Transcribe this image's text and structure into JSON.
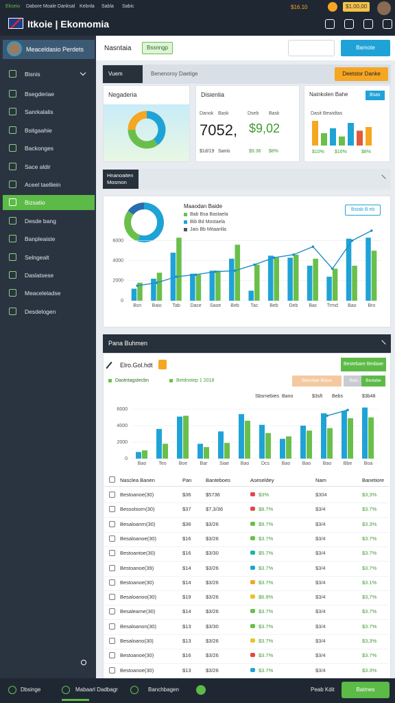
{
  "topbar": {
    "title": "Itkoie | Ekomomia",
    "links": [
      "Ekseio",
      "Dabore Moale Danksal",
      "Kebnla",
      "Sabla",
      "Sabic"
    ],
    "price": "$16.10",
    "balance": "$1.00,00"
  },
  "sidebar": {
    "user": "Meaceldasio Perdets",
    "menu": [
      "Bisnis",
      "Bsegderiae",
      "Sanrkalalis",
      "Bsitgaahie",
      "Backonges",
      "Sace aldir",
      "Aceel taelliein",
      "Bizsatio",
      "Desde bang",
      "Banpleaiste",
      "Selngealt",
      "Daslatsese",
      "Meaceleladse",
      "Desdelogen"
    ],
    "active": 7
  },
  "header": {
    "title": "Nasntaia",
    "tag": "Bssnngp",
    "button": "Bamote"
  },
  "panel1": {
    "tab": "Vuem",
    "subtitle": "Benenoroy Daetige",
    "button": "Deetstor Danke"
  },
  "cards": {
    "donut_card": {
      "title": "Negaderia",
      "donut": [
        40,
        35,
        25
      ],
      "colors": [
        "#1fa3d6",
        "#6abf4b",
        "#f5a623"
      ]
    },
    "stat_card": {
      "title": "Disienlia",
      "labels": [
        "Danok",
        "Bask",
        "Dseb",
        "Bask"
      ],
      "big": [
        "7052,",
        "$9,02"
      ],
      "foot": [
        "$1d/19",
        "Sanis",
        "$9.36",
        "$8%"
      ]
    },
    "mini_card": {
      "title": "Nainkolen Bahe",
      "button": "Bsas",
      "sub": "Dasit Bewidtas",
      "bars": [
        60,
        30,
        42,
        22,
        55,
        36,
        45
      ],
      "colors": [
        "#f5a623",
        "#6abf4b",
        "#1fa3d6",
        "#6abf4b",
        "#1fa3d6",
        "#e05a3a",
        "#f5a623"
      ],
      "foot": [
        "$10%",
        "$16%",
        "$8%"
      ]
    }
  },
  "panel2": {
    "tab": "Hnanoaiten Mosmon",
    "legend_title": "Maaodan Baide",
    "legend": [
      "Bab Bsa Bastaela",
      "Bib Bd Mostaela",
      "Jais Bb Mitaanlla"
    ],
    "legend_colors": [
      "#6abf4b",
      "#1fa3d6",
      "#555555"
    ],
    "tag": "Bstab B eb",
    "donut": [
      55,
      30,
      15
    ],
    "donut_colors": [
      "#1fa3d6",
      "#6abf4b",
      "#2b6cb0"
    ],
    "chart": {
      "ylim": [
        0,
        7000
      ],
      "yticks": [
        0,
        2000,
        4000,
        6000
      ],
      "categories": [
        "Bsn",
        "Baio",
        "Tab",
        "Dace",
        "Saoe",
        "Beb",
        "Tac",
        "Beb",
        "Deb",
        "Bac",
        "Trmd",
        "Bao",
        "Bro"
      ],
      "series": [
        {
          "type": "bar",
          "color": "#1fa3d6",
          "values": [
            1200,
            2200,
            4800,
            2700,
            3000,
            4200,
            1000,
            4500,
            4300,
            3500,
            2400,
            6200,
            6300
          ]
        },
        {
          "type": "bar",
          "color": "#6abf4b",
          "values": [
            1800,
            2800,
            6300,
            2600,
            3000,
            5600,
            3600,
            4300,
            4600,
            4200,
            3200,
            3500,
            5000
          ]
        },
        {
          "type": "line",
          "color": "#1f8fc4",
          "values": [
            1500,
            1800,
            2400,
            2600,
            2900,
            3000,
            3600,
            4300,
            4600,
            5400,
            3200,
            6000,
            7000
          ]
        }
      ]
    }
  },
  "panel3": {
    "title": "Pana Buhmen",
    "edit": "Elro.Gol.hdt",
    "button": "Bestebare Bedaae",
    "legend": [
      "Daotntagstecbn",
      "Betdnotep 1 2018"
    ],
    "buttons": [
      "Bamolae Btase",
      "Bais",
      "Bedabe"
    ],
    "stats": [
      "Sbsrnebies",
      "Bano",
      "$3sft",
      "Bebs",
      "$3b48"
    ],
    "chart": {
      "ylim": [
        0,
        6500
      ],
      "yticks": [
        0,
        2000,
        4000,
        6000
      ],
      "categories": [
        "Bao",
        "Teo",
        "Boe",
        "Bar",
        "Siae",
        "Bao",
        "Dcs",
        "Bao",
        "Bao",
        "Bao",
        "Bbe",
        "Boa"
      ],
      "series": [
        {
          "type": "bar",
          "color": "#1fa3d6",
          "values": [
            800,
            3600,
            5100,
            1800,
            3300,
            5400,
            4100,
            2400,
            4000,
            5500,
            5800,
            6200
          ]
        },
        {
          "type": "bar",
          "color": "#6abf4b",
          "values": [
            1000,
            1800,
            5200,
            1400,
            1900,
            4600,
            3100,
            2700,
            3400,
            3700,
            4900,
            5000
          ]
        },
        {
          "type": "line",
          "color": "#1f8fc4",
          "values": [
            null,
            null,
            null,
            null,
            null,
            null,
            null,
            null,
            null,
            5200,
            5900,
            null
          ]
        }
      ]
    },
    "table": {
      "columns": [
        "Nasclea Banen",
        "Pan",
        "Banteboes",
        "Aseseldey",
        "Nam",
        "Banetiore"
      ],
      "rows": [
        {
          "cells": [
            "Bestoanoe(30)",
            "$36",
            "$5736",
            "$3%",
            "$304",
            "$3,3%"
          ],
          "color": "#e04848"
        },
        {
          "cells": [
            "Bessolsorn(30)",
            "$37",
            "$7,3/36",
            "$8.7%",
            "$3/4",
            "$3.7%"
          ],
          "color": "#e04848"
        },
        {
          "cells": [
            "Besaloanrn(30)",
            "$36",
            "$3/26",
            "$9.7%",
            "$3/4",
            "$3.3%"
          ],
          "color": "#6abf4b"
        },
        {
          "cells": [
            "Besaloanoe(30)",
            "$16",
            "$3/26",
            "$3.7%",
            "$3/4",
            "$3.7%"
          ],
          "color": "#6abf4b"
        },
        {
          "cells": [
            "Bestoantoe(30)",
            "$16",
            "$3/30",
            "$5.7%",
            "$3/4",
            "$3.7%"
          ],
          "color": "#20b2aa"
        },
        {
          "cells": [
            "Bestoanoe(39)",
            "$14",
            "$3/26",
            "$3.7%",
            "$3/4",
            "$3.7%"
          ],
          "color": "#1fa3d6"
        },
        {
          "cells": [
            "Bestoanoe(30)",
            "$14",
            "$3/26",
            "$3.7%",
            "$3/4",
            "$3.1%"
          ],
          "color": "#f5a623"
        },
        {
          "cells": [
            "Besaloanoo(30)",
            "$19",
            "$3/26",
            "$6.9%",
            "$3/4",
            "$3,7%"
          ],
          "color": "#e8c22a"
        },
        {
          "cells": [
            "Besalearne(30)",
            "$14",
            "$3/26",
            "$3.7%",
            "$3/4",
            "$3.7%"
          ],
          "color": "#6abf4b"
        },
        {
          "cells": [
            "Besaloanon(30)",
            "$13",
            "$3/30",
            "$3.7%",
            "$3/4",
            "$3.7%"
          ],
          "color": "#6abf4b"
        },
        {
          "cells": [
            "Besaloano(30)",
            "$13",
            "$3/26",
            "$3.7%",
            "$3/4",
            "$3,3%"
          ],
          "color": "#e8c22a"
        },
        {
          "cells": [
            "Bestoanoe(30)",
            "$16",
            "$3/26",
            "$3.7%",
            "$3/4",
            "$3.7%"
          ],
          "color": "#e04848"
        },
        {
          "cells": [
            "Bestoanoe(30)",
            "$13",
            "$3/26",
            "$3.7%",
            "$3/4",
            "$3.3%"
          ],
          "color": "#1fa3d6"
        }
      ]
    }
  },
  "bottombar": {
    "items": [
      "Dbsinge",
      "Mabaarl Dadbagr",
      "Banchbagen"
    ],
    "right": "Peab Kdit",
    "button": "Batmes"
  }
}
